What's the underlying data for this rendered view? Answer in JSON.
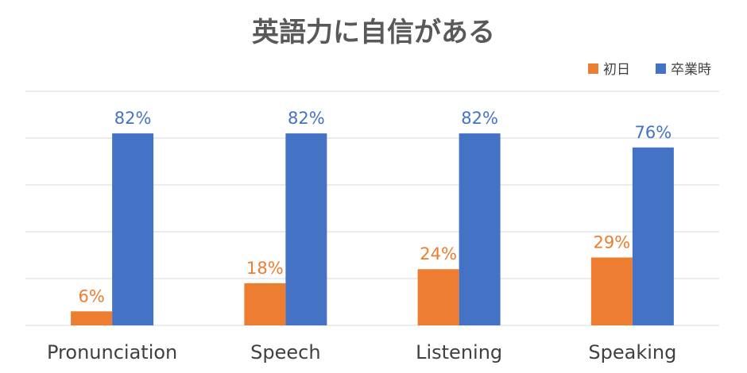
{
  "chart_data": {
    "type": "bar",
    "title": "英語力に自信がある",
    "categories": [
      "Pronunciation",
      "Speech",
      "Listening",
      "Speaking"
    ],
    "series": [
      {
        "name": "初日",
        "values": [
          6,
          18,
          24,
          29
        ],
        "labels": [
          "6%",
          "18%",
          "24%",
          "29%"
        ],
        "color": "#ED7D31"
      },
      {
        "name": "卒業時",
        "values": [
          82,
          82,
          82,
          76
        ],
        "labels": [
          "82%",
          "82%",
          "82%",
          "76%"
        ],
        "color": "#4472C4"
      }
    ],
    "ylim": [
      0,
      100
    ],
    "grid": true,
    "legend_position": "top-right",
    "label_colors": {
      "初日": "#ED7D31",
      "卒業時": "#4472C4"
    }
  }
}
